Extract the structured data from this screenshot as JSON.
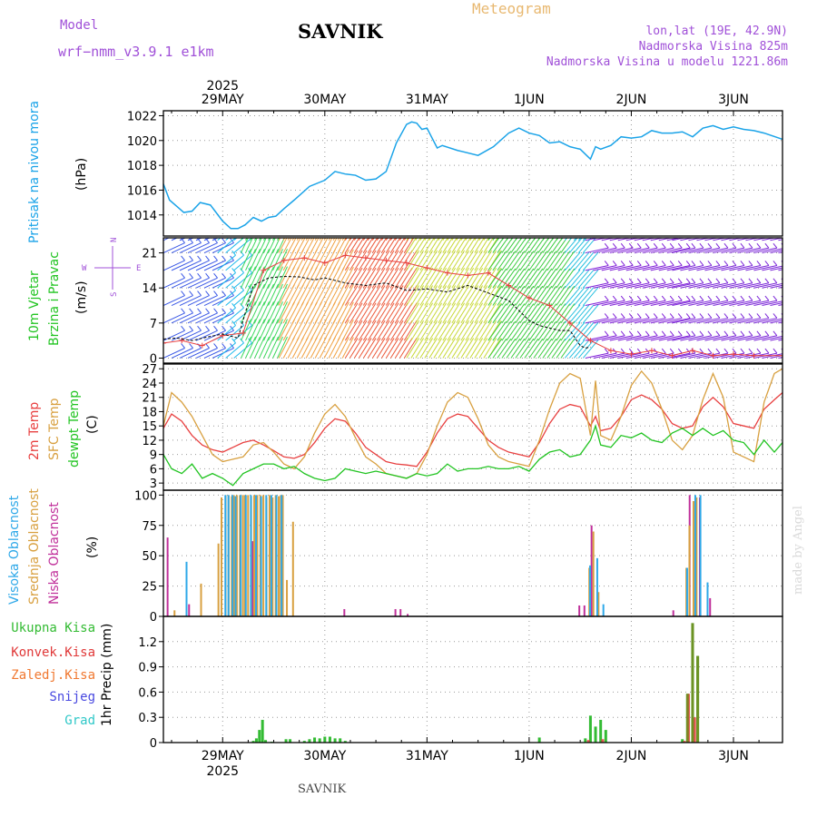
{
  "header": {
    "model_label": "Model",
    "model_name": "wrf−nmm_v3.9.1 e1km",
    "station": "SAVNIK",
    "title": "Meteogram",
    "coords": "lon,lat (19E, 42.9N)",
    "elevation": "Nadmorska Visina 825m",
    "model_elevation": "Nadmorska Visina u modelu 1221.86m",
    "footer_station": "SAVNIK",
    "credit": "made by Angel"
  },
  "time_axis": {
    "year": "2025",
    "days": [
      "29MAY",
      "30MAY",
      "31MAY",
      "1JUN",
      "2JUN",
      "3JUN"
    ],
    "range_days": [
      -0.58,
      5.48
    ]
  },
  "panel_labels": {
    "pressure": "Pritisak na nivou mora",
    "pressure_unit": "(hPa)",
    "wind_1": "10m Vjetar",
    "wind_2": "Brzina i Pravac",
    "wind_unit": "(m/s)",
    "compass": {
      "n": "N",
      "s": "S",
      "e": "E",
      "w": "W"
    },
    "temp_2m": "2m Temp",
    "temp_sfc": "SFC Temp",
    "temp_dew": "dewpt Temp",
    "temp_unit": "(C)",
    "cloud_high": "Visoka Oblacnost",
    "cloud_mid": "Srednja Oblacnost",
    "cloud_low": "Niska Oblacnost",
    "cloud_unit": "(%)",
    "rain_total": "Ukupna Kisa",
    "rain_conv": "Konvek.Kisa",
    "rain_frz": "Zaledj.Kisa",
    "snow": "Snijeg",
    "hail": "Grad",
    "precip_unit": "1hr Precip (mm)"
  },
  "colors": {
    "pressure": "#1aa3e8",
    "temp_2m": "#e84040",
    "temp_sfc": "#d8a040",
    "temp_dew": "#22c422",
    "cloud_high": "#2ea8e8",
    "cloud_mid": "#d8a040",
    "cloud_low": "#c0309a",
    "rain_total": "#33bb33",
    "rain_conv": "#e03838",
    "rain_frz": "#f07830",
    "snow": "#4848e0",
    "hail": "#30c8c8",
    "gust": "#e84040",
    "accent": "#a050d8"
  },
  "chart_data": [
    {
      "type": "line",
      "name": "pressure",
      "ylim": [
        1012.3,
        1022.4
      ],
      "yticks": [
        1014,
        1016,
        1018,
        1020,
        1022
      ],
      "x": [
        -0.58,
        -0.52,
        -0.45,
        -0.38,
        -0.3,
        -0.22,
        -0.12,
        0.0,
        0.08,
        0.15,
        0.22,
        0.3,
        0.38,
        0.45,
        0.52,
        0.6,
        0.7,
        0.85,
        1.0,
        1.1,
        1.2,
        1.3,
        1.4,
        1.5,
        1.6,
        1.7,
        1.8,
        1.85,
        1.9,
        1.95,
        2.0,
        2.05,
        2.1,
        2.15,
        2.3,
        2.5,
        2.65,
        2.8,
        2.9,
        3.0,
        3.1,
        3.2,
        3.3,
        3.4,
        3.5,
        3.6,
        3.65,
        3.7,
        3.8,
        3.9,
        4.0,
        4.1,
        4.2,
        4.3,
        4.4,
        4.5,
        4.6,
        4.7,
        4.8,
        4.9,
        5.0,
        5.1,
        5.2,
        5.3,
        5.48
      ],
      "y": [
        1016.5,
        1015.2,
        1014.7,
        1014.2,
        1014.3,
        1015.0,
        1014.8,
        1013.5,
        1012.9,
        1012.9,
        1013.2,
        1013.8,
        1013.5,
        1013.8,
        1013.9,
        1014.5,
        1015.2,
        1016.3,
        1016.8,
        1017.5,
        1017.3,
        1017.2,
        1016.8,
        1016.9,
        1017.5,
        1019.8,
        1021.3,
        1021.5,
        1021.4,
        1020.9,
        1021.0,
        1020.2,
        1019.4,
        1019.6,
        1019.2,
        1018.8,
        1019.5,
        1020.6,
        1021.0,
        1020.6,
        1020.4,
        1019.8,
        1019.9,
        1019.5,
        1019.3,
        1018.5,
        1019.5,
        1019.3,
        1019.6,
        1020.3,
        1020.2,
        1020.3,
        1020.8,
        1020.6,
        1020.6,
        1020.7,
        1020.3,
        1021.0,
        1021.2,
        1020.9,
        1021.1,
        1020.9,
        1020.8,
        1020.6,
        1020.1
      ]
    },
    {
      "type": "wind_barbs",
      "name": "wind",
      "ylim": [
        -1,
        24
      ],
      "yticks": [
        0,
        7,
        14,
        21
      ],
      "levels": [
        0,
        3.5,
        7,
        10.5,
        14,
        17.5,
        21,
        23.5
      ],
      "segments": [
        {
          "from": -0.58,
          "to": -0.05,
          "color": "#3a58e6",
          "angle": 25
        },
        {
          "from": -0.05,
          "to": 0.12,
          "color": "#1ab8ea",
          "angle": 40
        },
        {
          "from": 0.18,
          "to": 0.55,
          "color": "#3cd85c",
          "angle": 65
        },
        {
          "from": 0.55,
          "to": 1.2,
          "color": "#f0a040",
          "angle": 62
        },
        {
          "from": 1.2,
          "to": 1.8,
          "color": "#ec5838",
          "angle": 58
        },
        {
          "from": 1.8,
          "to": 2.6,
          "color": "#c8d838",
          "angle": 58
        },
        {
          "from": 2.6,
          "to": 3.35,
          "color": "#3ccc40",
          "angle": 55
        },
        {
          "from": 3.35,
          "to": 3.55,
          "color": "#28c0e0",
          "angle": 50
        },
        {
          "from": 3.55,
          "to": 4.4,
          "color": "#8020d8",
          "angle": 12
        },
        {
          "from": 4.4,
          "to": 5.48,
          "color": "#7c28d8",
          "angle": 12
        }
      ],
      "wind_speed": {
        "x": [
          -0.58,
          -0.45,
          -0.3,
          -0.15,
          0.0,
          0.15,
          0.3,
          0.45,
          0.6,
          0.75,
          0.9,
          1.0,
          1.2,
          1.4,
          1.6,
          1.8,
          2.0,
          2.2,
          2.4,
          2.6,
          2.8,
          3.0,
          3.1,
          3.2,
          3.3,
          3.4,
          3.5,
          3.55,
          3.6
        ],
        "y": [
          3.8,
          4.0,
          3.5,
          4.2,
          4.8,
          4.0,
          14.5,
          16.0,
          16.3,
          16.2,
          15.6,
          16.0,
          15.0,
          14.5,
          15.0,
          13.5,
          13.8,
          13.2,
          14.5,
          13.0,
          11.5,
          7.5,
          6.5,
          6.0,
          5.5,
          5.5,
          2.5,
          2.0,
          2.2
        ]
      },
      "wind_gust": {
        "x": [
          -0.58,
          -0.4,
          -0.2,
          0.0,
          0.2,
          0.4,
          0.6,
          0.8,
          1.0,
          1.2,
          1.4,
          1.6,
          1.8,
          2.0,
          2.2,
          2.4,
          2.6,
          2.8,
          3.0,
          3.2,
          3.4,
          3.6,
          3.8,
          4.0,
          4.2,
          4.4,
          4.6,
          4.8,
          5.0,
          5.2,
          5.48
        ],
        "y": [
          3.0,
          3.5,
          2.5,
          4.5,
          5.0,
          17.5,
          19.5,
          20.0,
          19.0,
          20.5,
          20.0,
          19.5,
          19.0,
          18.0,
          17.0,
          16.5,
          17.0,
          14.5,
          12.0,
          10.5,
          7.0,
          3.5,
          1.5,
          0.8,
          1.5,
          0.5,
          1.5,
          0.5,
          0.8,
          0.5,
          0.5
        ]
      }
    },
    {
      "type": "line",
      "name": "temperature",
      "ylim": [
        1.5,
        28
      ],
      "yticks": [
        3,
        6,
        9,
        12,
        15,
        18,
        21,
        24,
        27
      ],
      "x": [
        -0.58,
        -0.5,
        -0.4,
        -0.3,
        -0.2,
        -0.1,
        0.0,
        0.1,
        0.2,
        0.3,
        0.4,
        0.5,
        0.6,
        0.7,
        0.8,
        0.9,
        1.0,
        1.1,
        1.2,
        1.3,
        1.4,
        1.5,
        1.6,
        1.7,
        1.8,
        1.9,
        2.0,
        2.1,
        2.2,
        2.3,
        2.4,
        2.5,
        2.6,
        2.7,
        2.8,
        2.9,
        3.0,
        3.1,
        3.2,
        3.3,
        3.4,
        3.5,
        3.6,
        3.65,
        3.7,
        3.8,
        3.9,
        4.0,
        4.1,
        4.2,
        4.3,
        4.4,
        4.5,
        4.6,
        4.7,
        4.8,
        4.9,
        5.0,
        5.1,
        5.2,
        5.3,
        5.4,
        5.48
      ],
      "series": [
        {
          "name": "2m",
          "y": [
            14.5,
            17.5,
            16.0,
            13.0,
            11.0,
            10.0,
            9.5,
            10.5,
            11.5,
            12.0,
            11.0,
            9.8,
            8.5,
            8.2,
            9.0,
            11.5,
            14.5,
            16.5,
            16.0,
            13.5,
            10.5,
            9.0,
            7.5,
            7.0,
            6.8,
            6.5,
            9.5,
            13.5,
            16.5,
            17.5,
            17.0,
            14.5,
            12.0,
            10.5,
            9.5,
            9.0,
            8.5,
            11.5,
            15.5,
            18.5,
            19.5,
            19.0,
            15.0,
            17.0,
            14.0,
            14.5,
            17.0,
            20.5,
            21.5,
            20.5,
            18.5,
            15.5,
            14.5,
            15.0,
            19.0,
            21.0,
            19.0,
            15.5,
            15.0,
            14.5,
            18.5,
            20.5,
            22.0
          ]
        },
        {
          "name": "SFC",
          "y": [
            15.0,
            22.0,
            20.0,
            17.0,
            13.0,
            9.0,
            7.5,
            8.0,
            8.5,
            11.0,
            11.5,
            9.5,
            7.0,
            6.0,
            8.5,
            13.5,
            17.5,
            19.5,
            17.0,
            12.5,
            8.5,
            7.0,
            5.0,
            4.5,
            4.0,
            5.0,
            9.0,
            15.0,
            20.0,
            22.0,
            21.0,
            16.5,
            11.0,
            8.5,
            7.5,
            7.0,
            6.5,
            12.0,
            18.5,
            24.0,
            26.0,
            25.0,
            13.0,
            24.5,
            13.0,
            12.0,
            17.0,
            23.5,
            26.5,
            24.0,
            18.5,
            12.0,
            10.0,
            13.0,
            20.5,
            26.0,
            21.0,
            9.5,
            8.5,
            7.5,
            20.0,
            26.0,
            27.0
          ]
        },
        {
          "name": "dewpt",
          "y": [
            9.0,
            6.0,
            5.0,
            7.0,
            4.0,
            5.0,
            4.0,
            2.5,
            5.0,
            6.0,
            7.0,
            7.0,
            6.0,
            6.5,
            5.0,
            4.0,
            3.5,
            4.0,
            6.0,
            5.5,
            5.0,
            5.5,
            5.0,
            4.5,
            4.0,
            5.0,
            4.5,
            5.0,
            7.0,
            5.5,
            6.0,
            6.0,
            6.5,
            6.0,
            6.0,
            6.5,
            5.5,
            8.0,
            9.5,
            10.0,
            8.5,
            9.0,
            12.0,
            15.0,
            11.0,
            10.5,
            13.0,
            12.5,
            13.5,
            12.0,
            11.5,
            13.5,
            14.5,
            13.0,
            14.5,
            13.0,
            14.0,
            12.0,
            11.5,
            9.0,
            12.0,
            9.5,
            11.5
          ]
        }
      ]
    },
    {
      "type": "bar",
      "name": "cloud_cover",
      "ylim": [
        0,
        104
      ],
      "yticks": [
        0,
        25,
        50,
        75,
        100
      ],
      "series": [
        {
          "name": "low",
          "x": [
            -0.53,
            -0.32,
            0.3,
            1.2,
            1.7,
            1.75,
            1.82,
            3.5,
            3.55,
            3.62,
            3.68,
            4.42,
            4.58,
            4.68,
            4.78
          ],
          "y": [
            65,
            10,
            62,
            6,
            6,
            6,
            2,
            9,
            9,
            75,
            3,
            5,
            100,
            98,
            15
          ]
        },
        {
          "name": "mid",
          "x": [
            -0.48,
            -0.22,
            -0.05,
            -0.02,
            0.02,
            0.05,
            0.08,
            0.1,
            0.13,
            0.16,
            0.19,
            0.21,
            0.24,
            0.27,
            0.3,
            0.33,
            0.36,
            0.39,
            0.42,
            0.45,
            0.48,
            0.51,
            0.54,
            0.56,
            0.58,
            0.62,
            0.68,
            3.58,
            3.62,
            3.67,
            4.53,
            4.56,
            4.6,
            4.63
          ],
          "y": [
            5,
            27,
            60,
            98,
            100,
            100,
            99,
            100,
            100,
            100,
            100,
            100,
            100,
            99,
            100,
            100,
            100,
            100,
            98,
            100,
            98,
            100,
            99,
            100,
            100,
            30,
            78,
            40,
            70,
            20,
            40,
            75,
            95,
            98
          ]
        },
        {
          "name": "high",
          "x": [
            -0.38,
            0.0,
            0.03,
            0.07,
            0.1,
            0.15,
            0.2,
            0.25,
            0.3,
            0.35,
            0.4,
            0.45,
            0.5,
            0.55,
            3.57,
            3.64,
            3.7,
            4.52,
            4.6,
            4.65,
            4.72
          ],
          "y": [
            45,
            100,
            100,
            100,
            99,
            100,
            100,
            100,
            100,
            99,
            100,
            100,
            100,
            100,
            42,
            48,
            10,
            40,
            100,
            100,
            28
          ]
        }
      ]
    },
    {
      "type": "bar",
      "name": "precipitation",
      "ylim": [
        0,
        1.5
      ],
      "yticks": [
        0,
        0.3,
        0.6,
        0.9,
        1.2
      ],
      "series": [
        {
          "name": "total",
          "x": [
            0.3,
            0.33,
            0.36,
            0.39,
            0.42,
            0.48,
            0.62,
            0.66,
            0.8,
            0.85,
            0.9,
            0.95,
            1.0,
            1.05,
            1.1,
            1.15,
            1.2,
            3.1,
            3.55,
            3.6,
            3.65,
            3.7,
            3.75,
            4.5,
            4.55,
            4.6,
            4.65
          ],
          "y": [
            0.02,
            0.05,
            0.15,
            0.27,
            0.03,
            0.01,
            0.04,
            0.04,
            0.02,
            0.04,
            0.06,
            0.05,
            0.07,
            0.07,
            0.05,
            0.05,
            0.02,
            0.06,
            0.05,
            0.32,
            0.19,
            0.27,
            0.15,
            0.04,
            0.58,
            1.42,
            1.03
          ]
        },
        {
          "name": "convective",
          "x": [
            3.58,
            3.72,
            4.52,
            4.56,
            4.62
          ],
          "y": [
            0.03,
            0.04,
            0.02,
            0.58,
            0.3
          ]
        }
      ]
    }
  ]
}
